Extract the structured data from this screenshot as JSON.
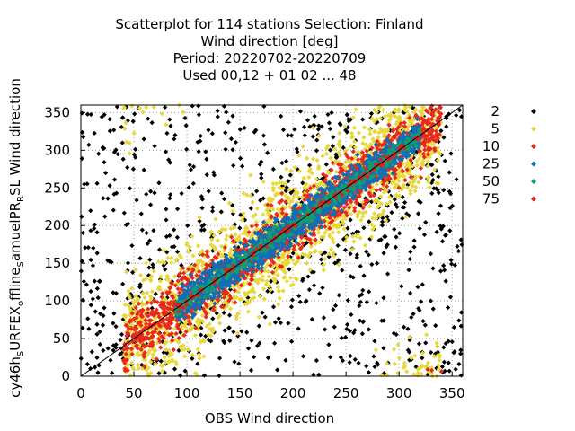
{
  "chart_data": {
    "type": "scatter",
    "title_lines": [
      "Scatterplot for  114 stations Selection: Finland",
      "Wind direction [deg]",
      "Period: 20220702-20220709",
      "Used  00,12  + 01 02 ... 48"
    ],
    "xlabel": "OBS Wind direction",
    "ylabel_parts": [
      "cy46h",
      "S",
      "URFEX",
      "o",
      "ffline",
      "S",
      "amuelPR",
      "R",
      "SL Wind direction"
    ],
    "xlim": [
      0,
      360
    ],
    "ylim": [
      0,
      360
    ],
    "xticks": [
      0,
      50,
      100,
      150,
      200,
      250,
      300,
      350
    ],
    "yticks": [
      0,
      50,
      100,
      150,
      200,
      250,
      300,
      350
    ],
    "grid": true,
    "diagonal": true,
    "legend_position": "right",
    "series": [
      {
        "name": "2",
        "color": "#000000",
        "spread": 150,
        "count": 900
      },
      {
        "name": "5",
        "color": "#e8d83a",
        "spread": 90,
        "count": 1800
      },
      {
        "name": "10",
        "color": "#e8291c",
        "spread": 42,
        "count": 1300
      },
      {
        "name": "25",
        "color": "#0f6fb6",
        "spread": 24,
        "count": 1600
      },
      {
        "name": "50",
        "color": "#0f9d73",
        "spread": 12,
        "count": 500
      },
      {
        "name": "75",
        "color": "#d6251c",
        "spread": 6,
        "count": 120
      }
    ]
  }
}
